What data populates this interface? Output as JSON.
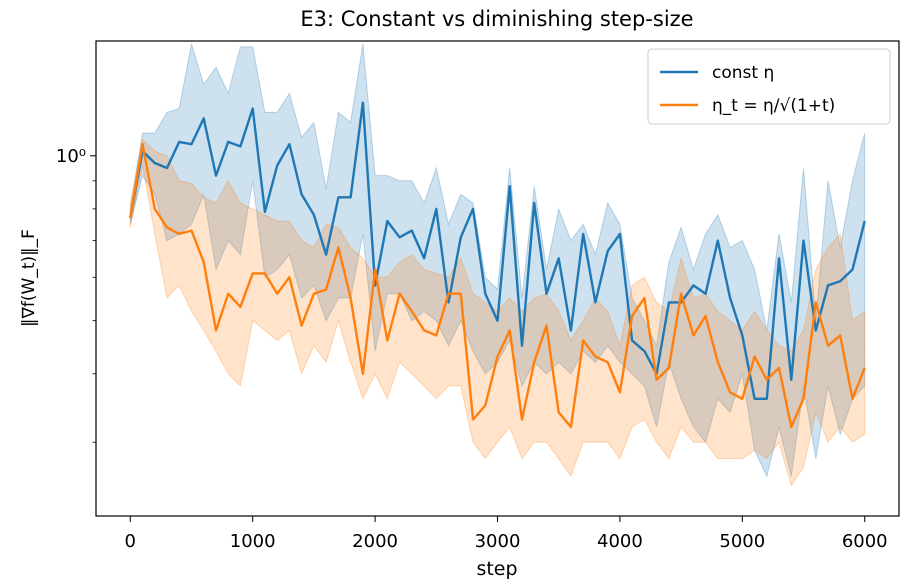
{
  "chart_data": {
    "type": "line",
    "title": "E3: Constant vs diminishing step-size",
    "xlabel": "step",
    "ylabel": "‖∇f(W_t)‖_F",
    "xlim": [
      -280,
      6280
    ],
    "ylim": [
      0.22,
      1.62
    ],
    "yscale": "log",
    "grid": false,
    "legend_position": "top-right",
    "x_ticks": [
      0,
      1000,
      2000,
      3000,
      4000,
      5000,
      6000
    ],
    "x_tick_labels": [
      "0",
      "1000",
      "2000",
      "3000",
      "4000",
      "5000",
      "6000"
    ],
    "y_ticks": [
      1.0
    ],
    "y_tick_labels": [
      "10⁰"
    ],
    "y_minor_ticks": [
      0.3,
      0.4,
      0.5,
      0.6,
      0.7,
      0.8,
      0.9
    ],
    "x": [
      0,
      100,
      200,
      300,
      400,
      500,
      600,
      700,
      800,
      900,
      1000,
      1100,
      1200,
      1300,
      1400,
      1500,
      1600,
      1700,
      1800,
      1900,
      2000,
      2100,
      2200,
      2300,
      2400,
      2500,
      2600,
      2700,
      2800,
      2900,
      3000,
      3100,
      3200,
      3300,
      3400,
      3500,
      3600,
      3700,
      3800,
      3900,
      4000,
      4100,
      4200,
      4300,
      4400,
      4500,
      4600,
      4700,
      4800,
      4900,
      5000,
      5100,
      5200,
      5300,
      5400,
      5500,
      5600,
      5700,
      5800,
      5900,
      6000
    ],
    "series": [
      {
        "name": "const η",
        "color": "#1f77b4",
        "values": [
          0.77,
          1.02,
          0.97,
          0.95,
          1.06,
          1.05,
          1.17,
          0.92,
          1.06,
          1.04,
          1.22,
          0.79,
          0.96,
          1.05,
          0.85,
          0.78,
          0.66,
          0.84,
          0.84,
          1.25,
          0.58,
          0.76,
          0.71,
          0.73,
          0.65,
          0.8,
          0.54,
          0.71,
          0.8,
          0.56,
          0.5,
          0.88,
          0.45,
          0.82,
          0.56,
          0.65,
          0.48,
          0.72,
          0.54,
          0.67,
          0.72,
          0.46,
          0.44,
          0.4,
          0.54,
          0.54,
          0.58,
          0.56,
          0.7,
          0.55,
          0.47,
          0.36,
          0.36,
          0.65,
          0.39,
          0.7,
          0.48,
          0.58,
          0.59,
          0.62,
          0.76
        ],
        "band_upper": [
          0.8,
          1.1,
          1.1,
          1.2,
          1.22,
          1.6,
          1.35,
          1.45,
          1.3,
          1.58,
          1.58,
          1.2,
          1.2,
          1.3,
          1.08,
          1.15,
          0.87,
          1.2,
          1.15,
          1.6,
          0.92,
          0.92,
          0.9,
          0.9,
          0.82,
          0.95,
          0.75,
          0.85,
          0.82,
          0.6,
          0.57,
          0.95,
          0.55,
          0.88,
          0.62,
          0.8,
          0.7,
          0.75,
          0.66,
          0.82,
          0.75,
          0.55,
          0.5,
          0.45,
          0.64,
          0.74,
          0.62,
          0.72,
          0.78,
          0.68,
          0.7,
          0.62,
          0.48,
          0.72,
          0.54,
          0.95,
          0.5,
          0.9,
          0.68,
          0.9,
          1.1
        ],
        "band_lower": [
          0.75,
          0.92,
          0.85,
          0.7,
          0.72,
          0.75,
          0.85,
          0.62,
          0.7,
          0.66,
          0.9,
          0.6,
          0.62,
          0.66,
          0.55,
          0.58,
          0.5,
          0.55,
          0.55,
          0.72,
          0.44,
          0.56,
          0.56,
          0.5,
          0.52,
          0.5,
          0.45,
          0.5,
          0.44,
          0.4,
          0.42,
          0.46,
          0.38,
          0.42,
          0.4,
          0.42,
          0.4,
          0.44,
          0.42,
          0.45,
          0.42,
          0.4,
          0.38,
          0.32,
          0.42,
          0.36,
          0.32,
          0.3,
          0.36,
          0.34,
          0.4,
          0.29,
          0.26,
          0.32,
          0.26,
          0.38,
          0.28,
          0.38,
          0.31,
          0.36,
          0.38
        ]
      },
      {
        "name": "η_t = η/√(1+t)",
        "color": "#ff7f0e",
        "values": [
          0.77,
          1.05,
          0.8,
          0.74,
          0.72,
          0.73,
          0.64,
          0.48,
          0.56,
          0.53,
          0.61,
          0.61,
          0.56,
          0.6,
          0.49,
          0.56,
          0.57,
          0.68,
          0.55,
          0.4,
          0.62,
          0.46,
          0.56,
          0.52,
          0.48,
          0.47,
          0.56,
          0.56,
          0.33,
          0.35,
          0.43,
          0.48,
          0.33,
          0.42,
          0.49,
          0.34,
          0.32,
          0.46,
          0.43,
          0.42,
          0.37,
          0.51,
          0.55,
          0.39,
          0.41,
          0.56,
          0.47,
          0.51,
          0.42,
          0.37,
          0.36,
          0.43,
          0.39,
          0.41,
          0.32,
          0.36,
          0.54,
          0.45,
          0.47,
          0.36,
          0.41
        ],
        "band_upper": [
          0.82,
          1.07,
          1.02,
          1.0,
          0.9,
          0.89,
          0.84,
          0.82,
          0.9,
          0.82,
          0.8,
          0.78,
          0.76,
          0.76,
          0.7,
          0.68,
          0.75,
          0.74,
          0.68,
          0.65,
          0.6,
          0.6,
          0.64,
          0.66,
          0.62,
          0.61,
          0.6,
          0.65,
          0.56,
          0.54,
          0.52,
          0.55,
          0.52,
          0.55,
          0.56,
          0.52,
          0.46,
          0.5,
          0.55,
          0.52,
          0.45,
          0.58,
          0.6,
          0.54,
          0.52,
          0.65,
          0.55,
          0.56,
          0.52,
          0.5,
          0.48,
          0.52,
          0.48,
          0.45,
          0.44,
          0.48,
          0.62,
          0.68,
          0.72,
          0.5,
          0.52
        ],
        "band_lower": [
          0.74,
          0.96,
          0.72,
          0.55,
          0.58,
          0.52,
          0.48,
          0.44,
          0.4,
          0.38,
          0.5,
          0.48,
          0.46,
          0.48,
          0.4,
          0.45,
          0.42,
          0.5,
          0.42,
          0.36,
          0.4,
          0.36,
          0.42,
          0.4,
          0.38,
          0.36,
          0.38,
          0.38,
          0.3,
          0.28,
          0.3,
          0.32,
          0.28,
          0.3,
          0.3,
          0.28,
          0.26,
          0.3,
          0.3,
          0.3,
          0.28,
          0.32,
          0.33,
          0.3,
          0.28,
          0.32,
          0.3,
          0.3,
          0.28,
          0.28,
          0.28,
          0.29,
          0.28,
          0.3,
          0.25,
          0.27,
          0.34,
          0.3,
          0.32,
          0.3,
          0.31
        ]
      }
    ]
  }
}
